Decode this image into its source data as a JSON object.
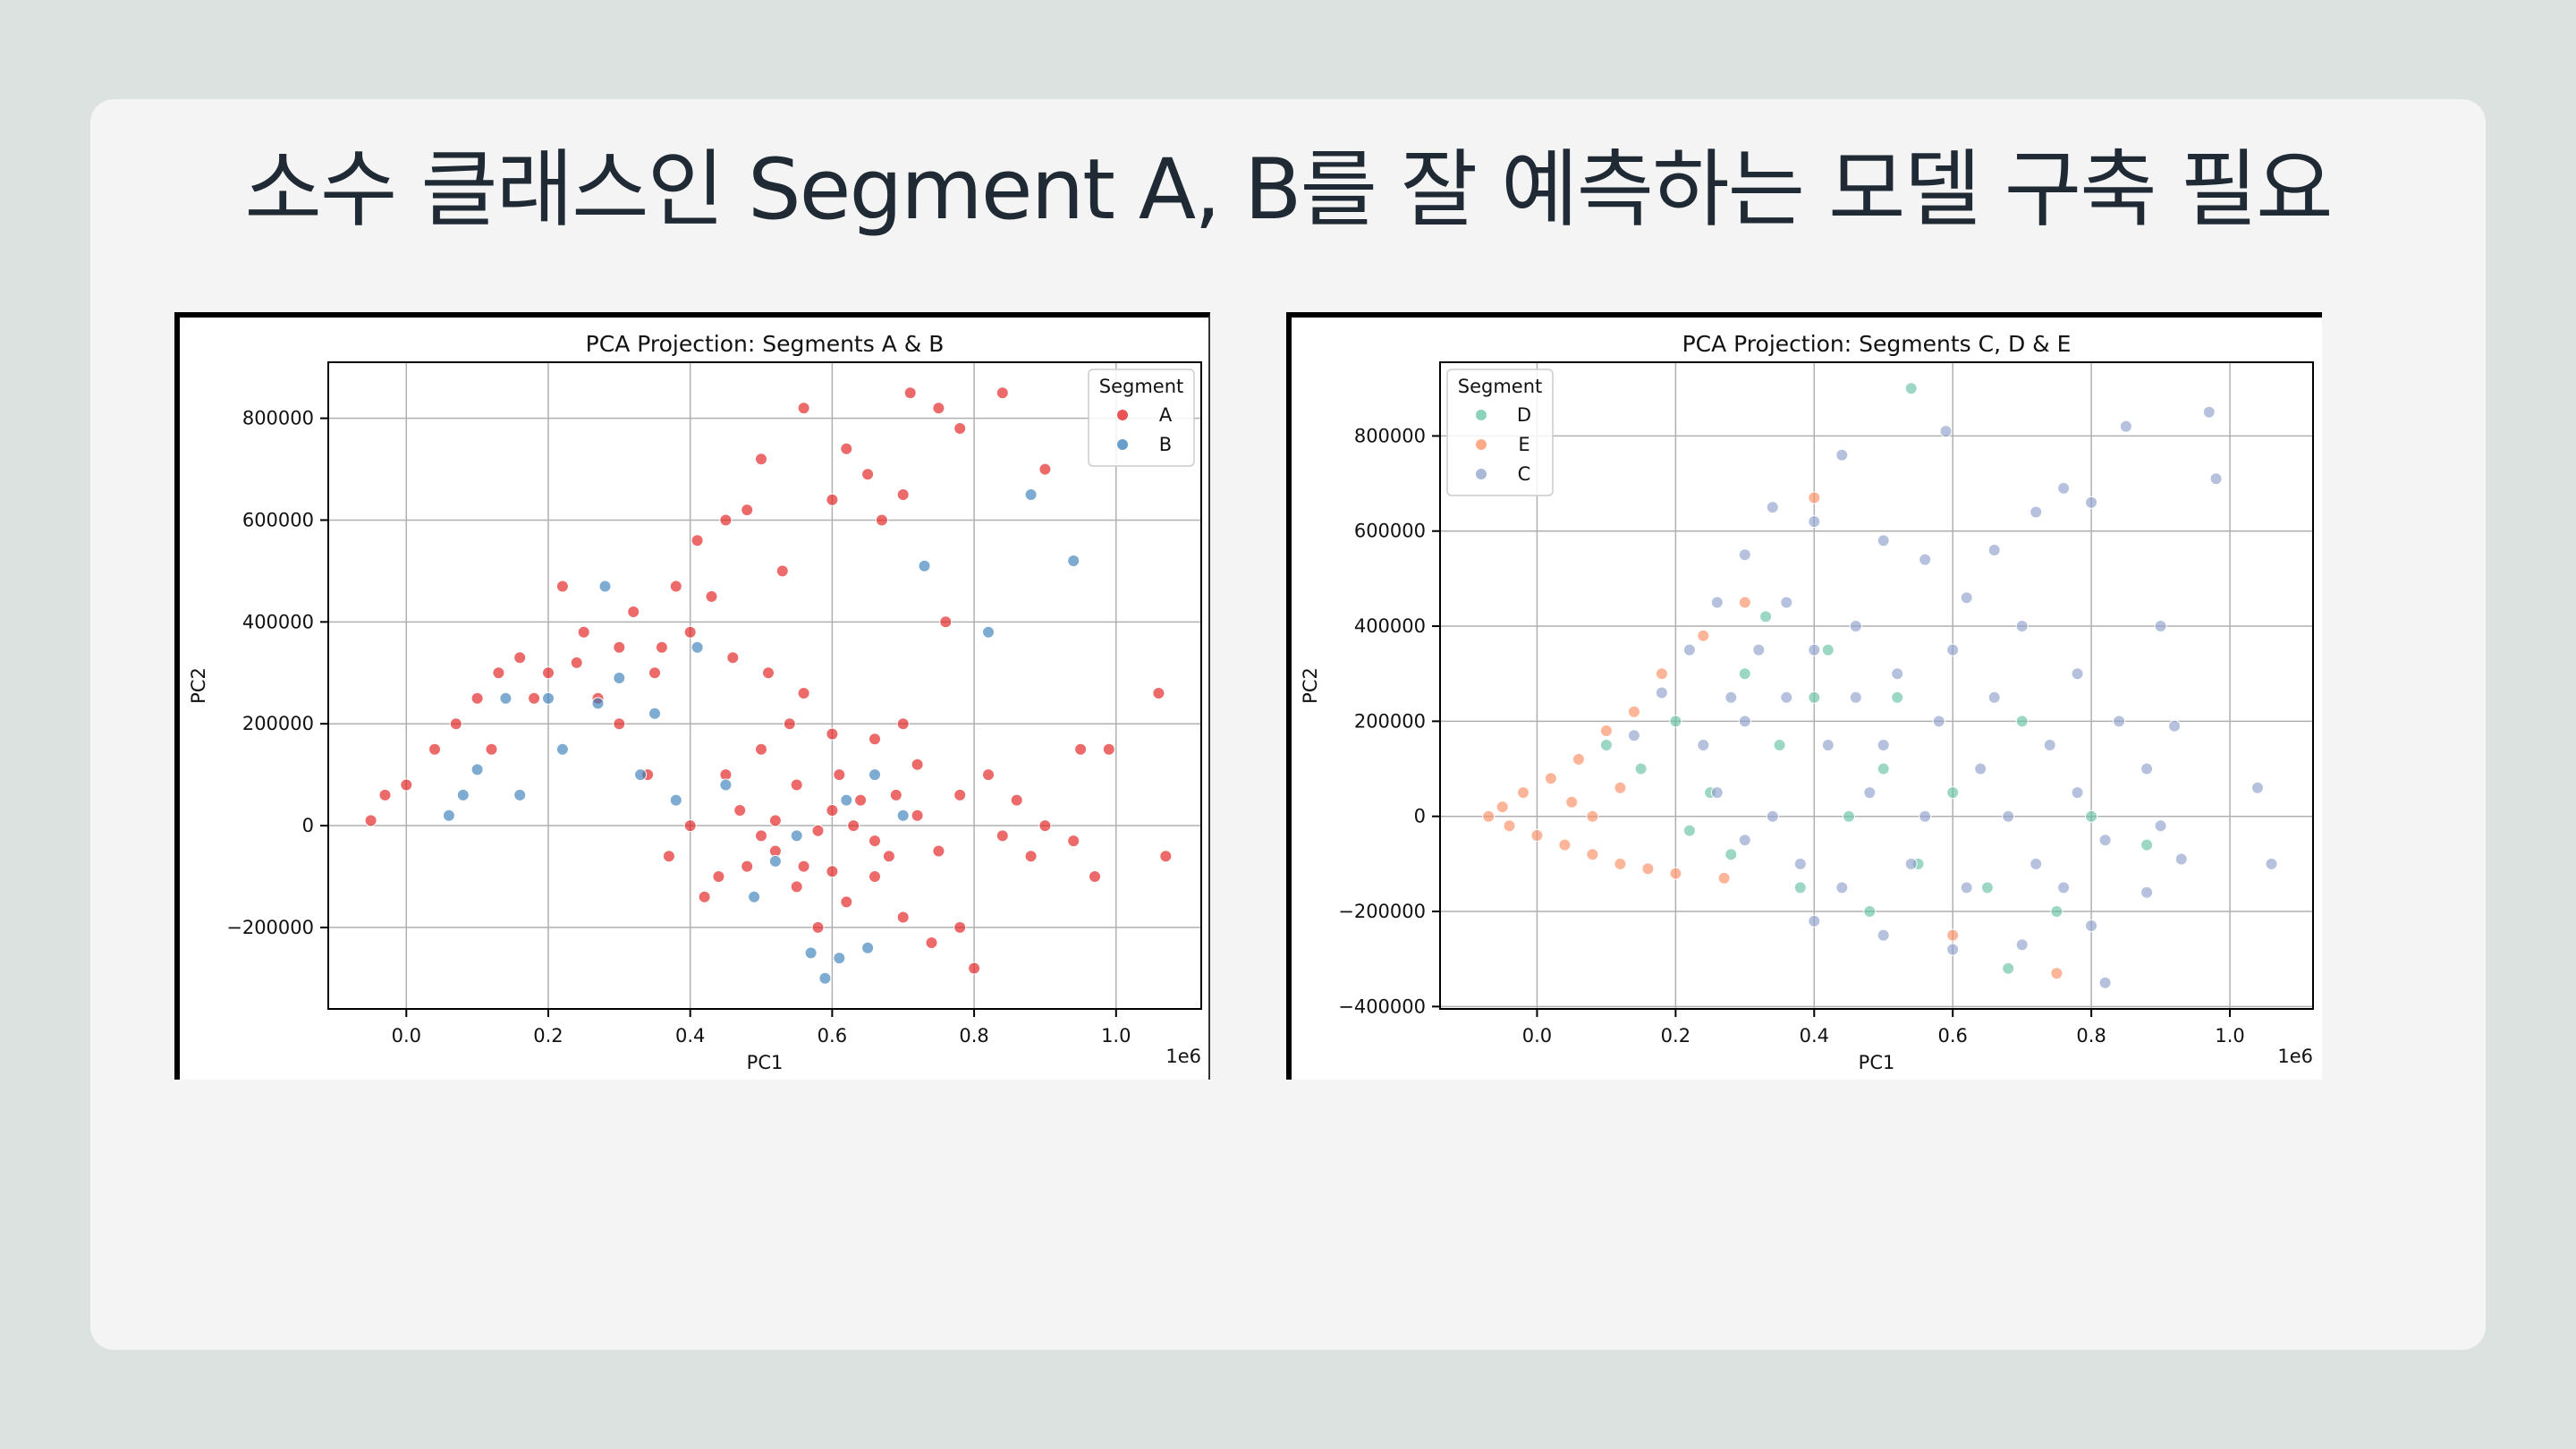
{
  "slide": {
    "title": "소수 클래스인 Segment A, B를 잘 예측하는 모델 구축 필요"
  },
  "chart_data": [
    {
      "type": "scatter",
      "title": "PCA Projection: Segments A & B",
      "xlabel": "PC1",
      "ylabel": "PC2",
      "x_offset_label": "1e6",
      "xlim": [
        -0.11,
        1.12
      ],
      "ylim": [
        -360000,
        910000
      ],
      "xticks": [
        0.0,
        0.2,
        0.4,
        0.6,
        0.8,
        1.0
      ],
      "xtick_labels": [
        "0.0",
        "0.2",
        "0.4",
        "0.6",
        "0.8",
        "1.0"
      ],
      "yticks": [
        -200000,
        0,
        200000,
        400000,
        600000,
        800000
      ],
      "ytick_labels": [
        "−200000",
        "0",
        "200000",
        "400000",
        "600000",
        "800000"
      ],
      "grid": true,
      "legend": {
        "title": "Segment",
        "position": "top-right"
      },
      "series": [
        {
          "name": "A",
          "color": "#e41a1c",
          "points": [
            [
              -0.05,
              10000
            ],
            [
              -0.03,
              60000
            ],
            [
              0.0,
              80000
            ],
            [
              0.04,
              150000
            ],
            [
              0.07,
              200000
            ],
            [
              0.1,
              250000
            ],
            [
              0.13,
              300000
            ],
            [
              0.16,
              330000
            ],
            [
              0.2,
              300000
            ],
            [
              0.22,
              470000
            ],
            [
              0.25,
              380000
            ],
            [
              0.27,
              250000
            ],
            [
              0.3,
              200000
            ],
            [
              0.32,
              420000
            ],
            [
              0.36,
              350000
            ],
            [
              0.38,
              470000
            ],
            [
              0.41,
              560000
            ],
            [
              0.43,
              450000
            ],
            [
              0.45,
              600000
            ],
            [
              0.48,
              620000
            ],
            [
              0.5,
              720000
            ],
            [
              0.53,
              500000
            ],
            [
              0.56,
              820000
            ],
            [
              0.6,
              640000
            ],
            [
              0.62,
              740000
            ],
            [
              0.65,
              690000
            ],
            [
              0.67,
              600000
            ],
            [
              0.7,
              650000
            ],
            [
              0.71,
              850000
            ],
            [
              0.75,
              820000
            ],
            [
              0.78,
              780000
            ],
            [
              0.84,
              850000
            ],
            [
              0.9,
              700000
            ],
            [
              0.95,
              150000
            ],
            [
              0.99,
              150000
            ],
            [
              1.06,
              260000
            ],
            [
              1.07,
              -60000
            ],
            [
              0.97,
              -100000
            ],
            [
              0.94,
              -30000
            ],
            [
              0.9,
              0
            ],
            [
              0.86,
              50000
            ],
            [
              0.82,
              100000
            ],
            [
              0.8,
              -280000
            ],
            [
              0.78,
              -200000
            ],
            [
              0.74,
              -230000
            ],
            [
              0.7,
              -180000
            ],
            [
              0.66,
              -100000
            ],
            [
              0.62,
              -150000
            ],
            [
              0.58,
              -200000
            ],
            [
              0.56,
              -80000
            ],
            [
              0.52,
              -50000
            ],
            [
              0.5,
              -20000
            ],
            [
              0.47,
              30000
            ],
            [
              0.44,
              -100000
            ],
            [
              0.42,
              -140000
            ],
            [
              0.4,
              0
            ],
            [
              0.37,
              -60000
            ],
            [
              0.34,
              100000
            ],
            [
              0.45,
              100000
            ],
            [
              0.5,
              150000
            ],
            [
              0.55,
              80000
            ],
            [
              0.6,
              30000
            ],
            [
              0.63,
              0
            ],
            [
              0.66,
              -30000
            ],
            [
              0.69,
              60000
            ],
            [
              0.72,
              20000
            ],
            [
              0.75,
              -50000
            ],
            [
              0.52,
              10000
            ],
            [
              0.58,
              -10000
            ],
            [
              0.61,
              100000
            ],
            [
              0.64,
              50000
            ],
            [
              0.68,
              -60000
            ],
            [
              0.55,
              -120000
            ],
            [
              0.6,
              -90000
            ],
            [
              0.48,
              -80000
            ],
            [
              0.54,
              200000
            ],
            [
              0.6,
              180000
            ],
            [
              0.66,
              170000
            ],
            [
              0.72,
              120000
            ],
            [
              0.78,
              60000
            ],
            [
              0.84,
              -20000
            ],
            [
              0.88,
              -60000
            ],
            [
              0.12,
              150000
            ],
            [
              0.18,
              250000
            ],
            [
              0.24,
              320000
            ],
            [
              0.3,
              350000
            ],
            [
              0.35,
              300000
            ],
            [
              0.4,
              380000
            ],
            [
              0.46,
              330000
            ],
            [
              0.51,
              300000
            ],
            [
              0.56,
              260000
            ],
            [
              0.76,
              400000
            ],
            [
              0.7,
              200000
            ]
          ]
        },
        {
          "name": "B",
          "color": "#377eb8",
          "points": [
            [
              0.06,
              20000
            ],
            [
              0.08,
              60000
            ],
            [
              0.1,
              110000
            ],
            [
              0.14,
              250000
            ],
            [
              0.16,
              60000
            ],
            [
              0.2,
              250000
            ],
            [
              0.22,
              150000
            ],
            [
              0.27,
              240000
            ],
            [
              0.28,
              470000
            ],
            [
              0.3,
              290000
            ],
            [
              0.33,
              100000
            ],
            [
              0.35,
              220000
            ],
            [
              0.38,
              50000
            ],
            [
              0.41,
              350000
            ],
            [
              0.45,
              80000
            ],
            [
              0.49,
              -140000
            ],
            [
              0.52,
              -70000
            ],
            [
              0.57,
              -250000
            ],
            [
              0.59,
              -300000
            ],
            [
              0.61,
              -260000
            ],
            [
              0.65,
              -240000
            ],
            [
              0.73,
              510000
            ],
            [
              0.82,
              380000
            ],
            [
              0.88,
              650000
            ],
            [
              0.94,
              520000
            ],
            [
              0.7,
              20000
            ],
            [
              0.62,
              50000
            ],
            [
              0.55,
              -20000
            ],
            [
              0.66,
              100000
            ]
          ]
        }
      ]
    },
    {
      "type": "scatter",
      "title": "PCA Projection: Segments C, D & E",
      "xlabel": "PC1",
      "ylabel": "PC2",
      "x_offset_label": "1e6",
      "xlim": [
        -0.14,
        1.12
      ],
      "ylim": [
        -405000,
        955000
      ],
      "xticks": [
        0.0,
        0.2,
        0.4,
        0.6,
        0.8,
        1.0
      ],
      "xtick_labels": [
        "0.0",
        "0.2",
        "0.4",
        "0.6",
        "0.8",
        "1.0"
      ],
      "yticks": [
        -400000,
        -200000,
        0,
        200000,
        400000,
        600000,
        800000
      ],
      "ytick_labels": [
        "−400000",
        "−200000",
        "0",
        "200000",
        "400000",
        "600000",
        "800000"
      ],
      "grid": true,
      "legend": {
        "title": "Segment",
        "position": "top-left"
      },
      "series": [
        {
          "name": "D",
          "color": "#66c2a5",
          "points": [
            [
              0.1,
              150000
            ],
            [
              0.15,
              100000
            ],
            [
              0.2,
              200000
            ],
            [
              0.25,
              50000
            ],
            [
              0.3,
              300000
            ],
            [
              0.35,
              150000
            ],
            [
              0.4,
              250000
            ],
            [
              0.45,
              0
            ],
            [
              0.5,
              100000
            ],
            [
              0.55,
              -100000
            ],
            [
              0.6,
              50000
            ],
            [
              0.65,
              -150000
            ],
            [
              0.7,
              200000
            ],
            [
              0.75,
              -200000
            ],
            [
              0.8,
              0
            ],
            [
              0.54,
              900000
            ],
            [
              0.68,
              -320000
            ],
            [
              0.88,
              -60000
            ],
            [
              0.22,
              -30000
            ],
            [
              0.28,
              -80000
            ],
            [
              0.33,
              420000
            ],
            [
              0.38,
              -150000
            ],
            [
              0.42,
              350000
            ],
            [
              0.48,
              -200000
            ],
            [
              0.52,
              250000
            ]
          ]
        },
        {
          "name": "E",
          "color": "#fc8d62",
          "points": [
            [
              -0.07,
              0
            ],
            [
              -0.05,
              20000
            ],
            [
              -0.04,
              -20000
            ],
            [
              -0.02,
              50000
            ],
            [
              0.0,
              -40000
            ],
            [
              0.02,
              80000
            ],
            [
              0.04,
              -60000
            ],
            [
              0.06,
              120000
            ],
            [
              0.08,
              -80000
            ],
            [
              0.1,
              180000
            ],
            [
              0.12,
              -100000
            ],
            [
              0.14,
              220000
            ],
            [
              0.16,
              -110000
            ],
            [
              0.18,
              300000
            ],
            [
              0.2,
              -120000
            ],
            [
              0.24,
              380000
            ],
            [
              0.27,
              -130000
            ],
            [
              0.3,
              450000
            ],
            [
              0.4,
              670000
            ],
            [
              0.6,
              -250000
            ],
            [
              0.75,
              -330000
            ],
            [
              0.05,
              30000
            ],
            [
              0.08,
              0
            ],
            [
              0.12,
              60000
            ]
          ]
        },
        {
          "name": "C",
          "color": "#8da0cb",
          "points": [
            [
              0.85,
              820000
            ],
            [
              0.97,
              850000
            ],
            [
              0.98,
              710000
            ],
            [
              0.59,
              810000
            ],
            [
              0.44,
              760000
            ],
            [
              1.04,
              60000
            ],
            [
              1.06,
              -100000
            ],
            [
              0.92,
              190000
            ],
            [
              0.82,
              -350000
            ],
            [
              0.9,
              400000
            ],
            [
              0.72,
              640000
            ],
            [
              0.76,
              690000
            ],
            [
              0.8,
              660000
            ],
            [
              0.66,
              560000
            ],
            [
              0.34,
              650000
            ],
            [
              0.3,
              550000
            ],
            [
              0.26,
              450000
            ],
            [
              0.22,
              350000
            ],
            [
              0.18,
              260000
            ],
            [
              0.14,
              170000
            ],
            [
              0.4,
              620000
            ],
            [
              0.5,
              580000
            ],
            [
              0.56,
              540000
            ],
            [
              0.62,
              460000
            ],
            [
              0.7,
              400000
            ],
            [
              0.78,
              300000
            ],
            [
              0.84,
              200000
            ],
            [
              0.88,
              100000
            ],
            [
              0.9,
              -20000
            ],
            [
              0.93,
              -90000
            ],
            [
              0.88,
              -160000
            ],
            [
              0.8,
              -230000
            ],
            [
              0.7,
              -270000
            ],
            [
              0.6,
              -280000
            ],
            [
              0.5,
              -250000
            ],
            [
              0.4,
              -220000
            ],
            [
              0.46,
              400000
            ],
            [
              0.52,
              300000
            ],
            [
              0.58,
              200000
            ],
            [
              0.64,
              100000
            ],
            [
              0.68,
              0
            ],
            [
              0.72,
              -100000
            ],
            [
              0.54,
              -100000
            ],
            [
              0.48,
              50000
            ],
            [
              0.42,
              150000
            ],
            [
              0.36,
              250000
            ],
            [
              0.3,
              200000
            ],
            [
              0.34,
              0
            ],
            [
              0.38,
              -100000
            ],
            [
              0.44,
              -150000
            ],
            [
              0.6,
              350000
            ],
            [
              0.66,
              250000
            ],
            [
              0.74,
              150000
            ],
            [
              0.78,
              50000
            ],
            [
              0.82,
              -50000
            ],
            [
              0.76,
              -150000
            ],
            [
              0.62,
              -150000
            ],
            [
              0.56,
              0
            ],
            [
              0.5,
              150000
            ],
            [
              0.46,
              250000
            ],
            [
              0.4,
              350000
            ],
            [
              0.36,
              450000
            ],
            [
              0.32,
              350000
            ],
            [
              0.28,
              250000
            ],
            [
              0.24,
              150000
            ],
            [
              0.26,
              50000
            ],
            [
              0.3,
              -50000
            ]
          ]
        }
      ]
    }
  ]
}
